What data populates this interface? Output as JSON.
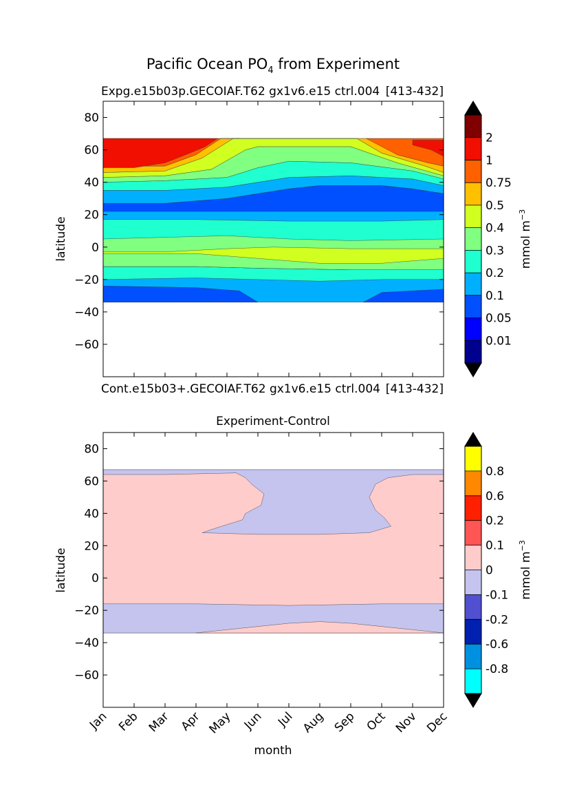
{
  "figure_title": {
    "main": "Pacific Ocean PO",
    "sub": "4",
    "rest": " from Experiment"
  },
  "chart_data": [
    {
      "type": "contour",
      "title_left": "Expg.e15b03p.GECOIAF.T62 gx1v6.e15 ctrl.004",
      "title_right": "[413-432]",
      "xlabel": "",
      "ylabel": "latitude",
      "ylim": [
        -80,
        90
      ],
      "yticks": [
        80,
        60,
        40,
        20,
        0,
        -20,
        -40,
        -60
      ],
      "ytick_labels": [
        "80",
        "60",
        "40",
        "20",
        "0",
        "−20",
        "−40",
        "−60"
      ],
      "data_lat_range": [
        -34,
        67
      ],
      "colorbar": {
        "label": "mmol m",
        "label_exp": "−3",
        "levels": [
          "0.01",
          "0.05",
          "0.1",
          "0.2",
          "0.3",
          "0.4",
          "0.5",
          "0.75",
          "1",
          "2"
        ],
        "colors": [
          "#00008f",
          "#0000ff",
          "#0050ff",
          "#00b0ff",
          "#20ffd0",
          "#80ff80",
          "#d0ff20",
          "#ffc000",
          "#ff6000",
          "#f00f00",
          "#800000"
        ],
        "extend": "both",
        "over_color": "#000000",
        "under_color": "#000000"
      }
    },
    {
      "type": "contour",
      "title_left": "Cont.e15b03+.GECOIAF.T62 gx1v6.e15 ctrl.004",
      "title_right": "[413-432]",
      "title_center": "Experiment-Control",
      "xlabel": "month",
      "ylabel": "latitude",
      "ylim": [
        -80,
        90
      ],
      "yticks": [
        80,
        60,
        40,
        20,
        0,
        -20,
        -40,
        -60
      ],
      "ytick_labels": [
        "80",
        "60",
        "40",
        "20",
        "0",
        "−20",
        "−40",
        "−60"
      ],
      "xticks": [
        "Jan",
        "Feb",
        "Mar",
        "Apr",
        "May",
        "Jun",
        "Jul",
        "Aug",
        "Sep",
        "Oct",
        "Nov",
        "Dec"
      ],
      "data_lat_range": [
        -34,
        67
      ],
      "colorbar": {
        "label": "mmol m",
        "label_exp": "−3",
        "levels": [
          "-0.8",
          "-0.6",
          "-0.2",
          "-0.1",
          "0",
          "0.1",
          "0.2",
          "0.6",
          "0.8"
        ],
        "colors": [
          "#00ffff",
          "#0090e0",
          "#0020b0",
          "#5050d0",
          "#c4c4ee",
          "#ffcccc",
          "#ff5555",
          "#ff2000",
          "#ff8800",
          "#ffff00"
        ],
        "extend": "both",
        "over_color": "#000000",
        "under_color": "#000000"
      }
    }
  ]
}
